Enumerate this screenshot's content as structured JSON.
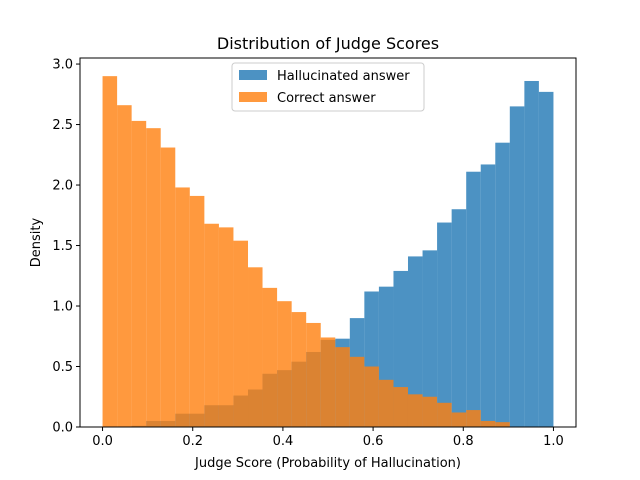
{
  "chart_data": {
    "type": "histogram",
    "title": "Distribution of Judge Scores",
    "xlabel": "Judge Score (Probability of Hallucination)",
    "ylabel": "Density",
    "xlim": [
      -0.05,
      1.05
    ],
    "ylim": [
      0,
      3.05
    ],
    "xticks": [
      0.0,
      0.2,
      0.4,
      0.6,
      0.8,
      1.0
    ],
    "xtick_labels": [
      "0.0",
      "0.2",
      "0.4",
      "0.6",
      "0.8",
      "1.0"
    ],
    "yticks": [
      0.0,
      0.5,
      1.0,
      1.5,
      2.0,
      2.5,
      3.0
    ],
    "ytick_labels": [
      "0.0",
      "0.5",
      "1.0",
      "1.5",
      "2.0",
      "2.5",
      "3.0"
    ],
    "legend_position": "upper center",
    "bin_width": 0.0323,
    "bin_edges": [
      0.0,
      0.0323,
      0.0645,
      0.0968,
      0.129,
      0.1613,
      0.1935,
      0.2258,
      0.2581,
      0.2903,
      0.3226,
      0.3548,
      0.3871,
      0.4194,
      0.4516,
      0.4839,
      0.5161,
      0.5484,
      0.5806,
      0.6129,
      0.6452,
      0.6774,
      0.7097,
      0.7419,
      0.7742,
      0.8065,
      0.8387,
      0.871,
      0.9032,
      0.9355,
      0.9677,
      1.0
    ],
    "series": [
      {
        "name": "Hallucinated answer",
        "color": "#1f77b4",
        "opacity": 0.8,
        "values": [
          0.0,
          0.0,
          0.01,
          0.05,
          0.05,
          0.11,
          0.11,
          0.18,
          0.18,
          0.26,
          0.31,
          0.44,
          0.47,
          0.54,
          0.62,
          0.72,
          0.73,
          0.9,
          1.12,
          1.16,
          1.29,
          1.41,
          1.46,
          1.69,
          1.8,
          2.11,
          2.17,
          2.35,
          2.65,
          2.86,
          2.77
        ]
      },
      {
        "name": "Correct answer",
        "color": "#ff7f0e",
        "opacity": 0.8,
        "values": [
          2.9,
          2.66,
          2.53,
          2.47,
          2.31,
          1.98,
          1.91,
          1.68,
          1.65,
          1.54,
          1.32,
          1.15,
          1.04,
          0.95,
          0.86,
          0.74,
          0.66,
          0.58,
          0.5,
          0.39,
          0.33,
          0.27,
          0.25,
          0.2,
          0.12,
          0.14,
          0.05,
          0.04,
          0.0,
          0.0,
          0.0
        ]
      }
    ]
  }
}
